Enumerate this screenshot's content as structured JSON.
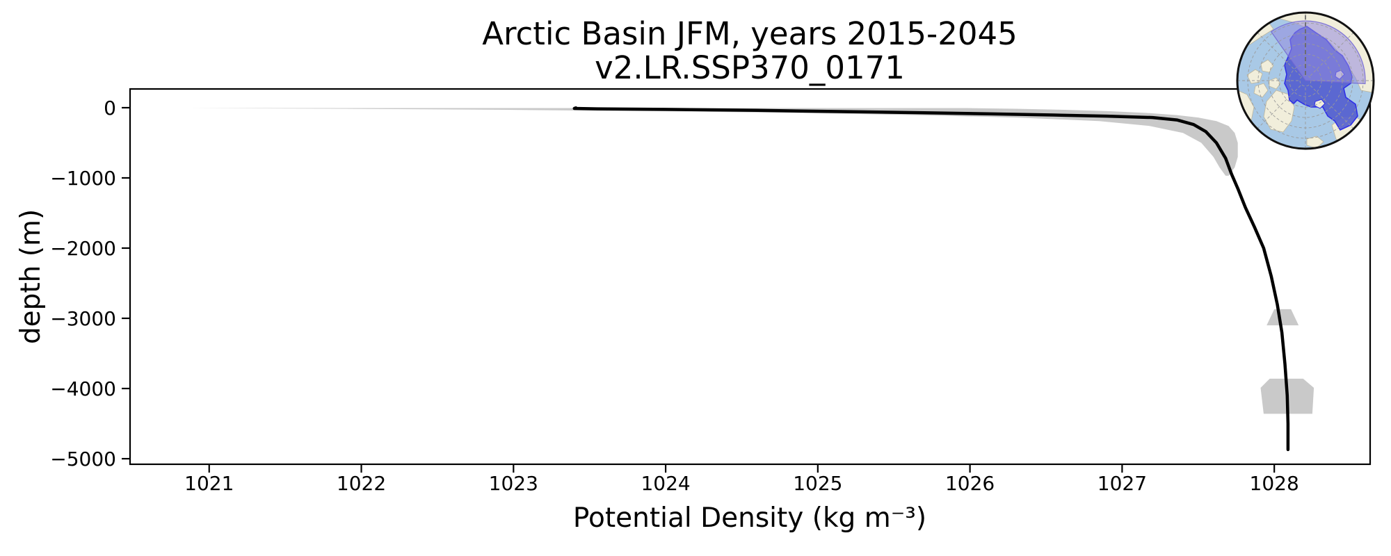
{
  "figure": {
    "title": "Arctic Basin JFM, years 2015-2045",
    "subtitle": "v2.LR.SSP370_0171"
  },
  "chart_data": {
    "type": "line",
    "title": "Arctic Basin JFM, years 2015-2045",
    "subtitle": "v2.LR.SSP370_0171",
    "xlabel": "Potential Density (kg m⁻³)",
    "ylabel": "depth (m)",
    "xlim": [
      1020.48,
      1028.63
    ],
    "ylim": [
      -5079,
      267
    ],
    "grid": false,
    "legend": "none",
    "xticks": [
      1021,
      1022,
      1023,
      1024,
      1025,
      1026,
      1027,
      1028
    ],
    "xtick_labels": [
      "1021",
      "1022",
      "1023",
      "1024",
      "1025",
      "1026",
      "1027",
      "1028"
    ],
    "yticks": [
      0,
      -1000,
      -2000,
      -3000,
      -4000,
      -5000
    ],
    "ytick_labels": [
      "0",
      "−1000",
      "−2000",
      "−3000",
      "−4000",
      "−5000"
    ],
    "series": [
      {
        "name": "spread-band",
        "type": "band",
        "color": "#c9c9c9",
        "depth": [
          -5,
          -15,
          -30,
          -50,
          -75,
          -105,
          -140,
          -190,
          -260,
          -360,
          -500,
          -700,
          -850,
          -970
        ],
        "min": [
          1020.86,
          1021.9,
          1022.95,
          1023.95,
          1024.85,
          1025.65,
          1026.3,
          1026.85,
          1027.18,
          1027.4,
          1027.52,
          1027.6,
          1027.64,
          1027.68
        ],
        "max": [
          1025.98,
          1026.3,
          1026.62,
          1026.92,
          1027.16,
          1027.36,
          1027.5,
          1027.62,
          1027.7,
          1027.74,
          1027.76,
          1027.76,
          1027.74,
          1027.7
        ]
      },
      {
        "name": "spread-patch-3000m",
        "type": "polygon",
        "color": "#c9c9c9",
        "points": [
          [
            1028.0,
            -2870
          ],
          [
            1028.11,
            -2870
          ],
          [
            1028.16,
            -3100
          ],
          [
            1027.95,
            -3100
          ]
        ]
      },
      {
        "name": "spread-patch-4100m",
        "type": "polygon",
        "color": "#c9c9c9",
        "points": [
          [
            1027.97,
            -3860
          ],
          [
            1028.19,
            -3860
          ],
          [
            1028.26,
            -3990
          ],
          [
            1028.25,
            -4360
          ],
          [
            1027.93,
            -4360
          ],
          [
            1027.91,
            -3990
          ]
        ]
      },
      {
        "name": "mean-profile",
        "type": "line",
        "color": "#000000",
        "linewidth": 4.5,
        "points": [
          [
            1023.41,
            -2
          ],
          [
            1023.4,
            -10
          ],
          [
            1023.55,
            -16
          ],
          [
            1024.0,
            -24
          ],
          [
            1024.6,
            -38
          ],
          [
            1025.15,
            -55
          ],
          [
            1025.7,
            -72
          ],
          [
            1026.15,
            -88
          ],
          [
            1026.55,
            -104
          ],
          [
            1026.9,
            -120
          ],
          [
            1027.2,
            -140
          ],
          [
            1027.36,
            -175
          ],
          [
            1027.47,
            -240
          ],
          [
            1027.55,
            -340
          ],
          [
            1027.62,
            -500
          ],
          [
            1027.68,
            -720
          ],
          [
            1027.72,
            -950
          ],
          [
            1027.76,
            -1150
          ],
          [
            1027.81,
            -1420
          ],
          [
            1027.87,
            -1700
          ],
          [
            1027.93,
            -2000
          ],
          [
            1027.98,
            -2400
          ],
          [
            1028.02,
            -2800
          ],
          [
            1028.05,
            -3200
          ],
          [
            1028.07,
            -3650
          ],
          [
            1028.085,
            -4100
          ],
          [
            1028.09,
            -4500
          ],
          [
            1028.09,
            -4870
          ]
        ]
      }
    ]
  },
  "inset_map": {
    "description": "Polar stereographic map with Arctic Basin region highlighted",
    "colors": {
      "ocean": "#a9c9e6",
      "land": "#f1eedb",
      "land_outline": "#bdb69c",
      "basin_fill": "#5560cf",
      "basin_outline": "#2e2ee8",
      "highlight_fill": "rgba(148,139,222,0.55)",
      "highlight_outline": "rgba(110,100,210,0.85)",
      "graticule": "#9a9a9a",
      "meridian": "#6a6a6a",
      "border": "#111111"
    }
  }
}
